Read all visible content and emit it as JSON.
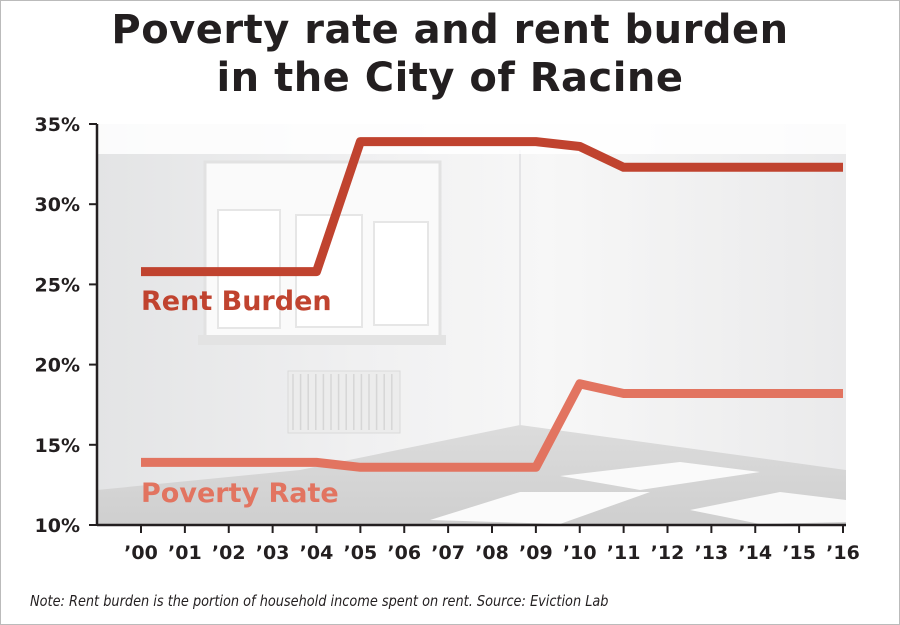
{
  "title": {
    "line1": "Poverty rate and rent burden",
    "line2": "in the City of Racine"
  },
  "note": "Note: Rent burden is the portion of household income spent on rent. Source: Eviction Lab",
  "chart_data": {
    "type": "line",
    "x": [
      "’00",
      "’01",
      "’02",
      "’03",
      "’04",
      "’05",
      "’06",
      "’07",
      "’08",
      "’09",
      "’10",
      "’11",
      "’12",
      "’13",
      "’14",
      "’15",
      "’16"
    ],
    "yticks": [
      "35%",
      "30%",
      "25%",
      "20%",
      "15%",
      "10%"
    ],
    "ylim": [
      10,
      35
    ],
    "series": [
      {
        "name": "Rent Burden",
        "color": "#c0432f",
        "values": [
          25.8,
          25.8,
          25.8,
          25.8,
          25.8,
          33.9,
          33.9,
          33.9,
          33.9,
          33.9,
          33.6,
          32.3,
          32.3,
          32.3,
          32.3,
          32.3,
          32.3
        ]
      },
      {
        "name": "Poverty Rate",
        "color": "#e27460",
        "values": [
          13.9,
          13.9,
          13.9,
          13.9,
          13.9,
          13.6,
          13.6,
          13.6,
          13.6,
          13.6,
          18.8,
          18.2,
          18.2,
          18.2,
          18.2,
          18.2,
          18.2
        ]
      }
    ],
    "grid": false,
    "background": "photo of empty room with window"
  }
}
